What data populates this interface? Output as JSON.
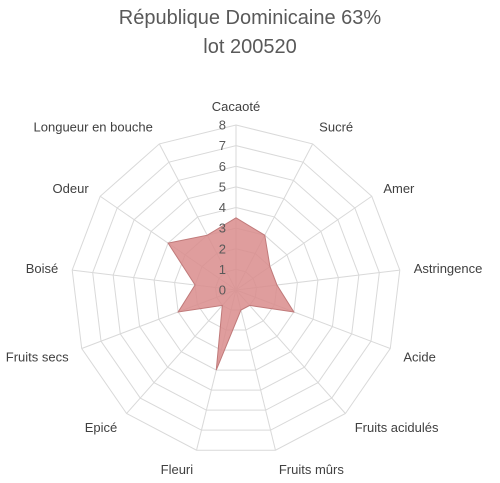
{
  "chart_data": {
    "type": "radar",
    "title_line1": "République Dominicaine 63%",
    "title_line2": "lot 200520",
    "rlim": [
      0,
      8
    ],
    "r_ticks": [
      "0",
      "1",
      "2",
      "3",
      "4",
      "5",
      "6",
      "7",
      "8"
    ],
    "grid": true,
    "categories": [
      "Cacaoté",
      "Sucré",
      "Amer",
      "Astringence",
      "Acide",
      "Fruits acidulés",
      "Fruits mûrs",
      "Fleuri",
      "Epicé",
      "Fruits secs",
      "Boisé",
      "Odeur",
      "Longueur en bouche"
    ],
    "series": [
      {
        "values": [
          3.5,
          3,
          2,
          2,
          3,
          1,
          1,
          4,
          1,
          3,
          2,
          4,
          3
        ]
      }
    ],
    "colors": {
      "fill": "#d98c8c",
      "stroke": "#c07a7a",
      "grid": "#d9d9d9",
      "text": "#595959"
    }
  }
}
